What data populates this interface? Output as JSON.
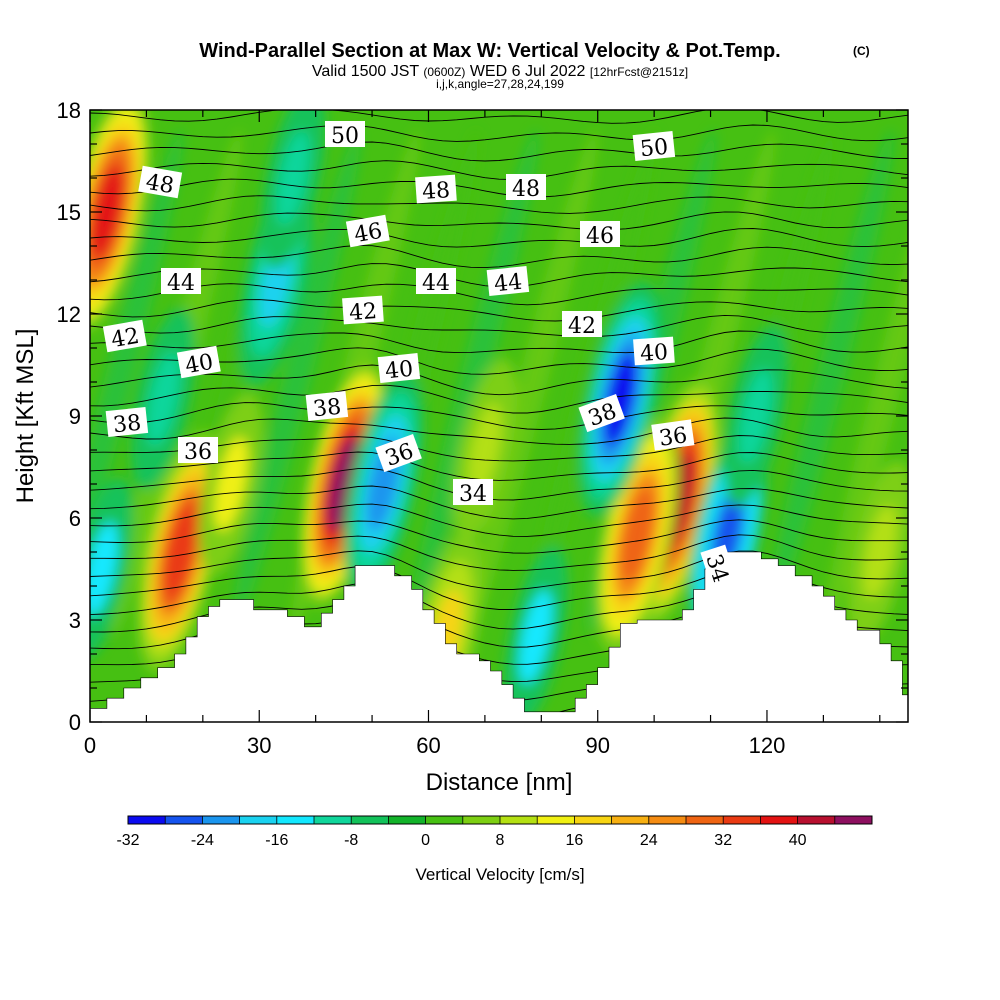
{
  "chart_data": {
    "type": "heatmap",
    "title": "Wind-Parallel Section at Max W: Vertical Velocity & Pot.Temp.",
    "title_mark": "(C)",
    "subtitle_parts": [
      "Valid 1500 JST",
      "(0600Z)",
      "WED 6 Jul 2022",
      "[12hrFcst@2151z]"
    ],
    "subtitle3": "i,j,k,angle=27,28,24,199",
    "xlabel": "Distance [nm]",
    "ylabel": "Height [Kft MSL]",
    "xlim": [
      0,
      145
    ],
    "ylim": [
      0,
      18
    ],
    "xticks": [
      0,
      30,
      60,
      90,
      120
    ],
    "yticks": [
      0,
      3,
      6,
      9,
      12,
      15,
      18
    ],
    "colorbar": {
      "label": "Vertical Velocity [cm/s]",
      "ticks": [
        -32,
        -24,
        -16,
        -8,
        0,
        8,
        16,
        24,
        32,
        40
      ],
      "min": -32,
      "max": 48,
      "step": 4,
      "colors": [
        "#0b0bf0",
        "#1553ee",
        "#1a95ee",
        "#1ad2f0",
        "#12e8ff",
        "#10d69b",
        "#12c25a",
        "#12b32a",
        "#46c012",
        "#7dcf12",
        "#b4e012",
        "#f0f012",
        "#f7d412",
        "#f7b012",
        "#f58c12",
        "#ef6412",
        "#ea3a12",
        "#e31212",
        "#b8102f",
        "#8e1060",
        "#5a1082"
      ]
    },
    "isentrope_labels": [
      "50",
      "50",
      "48",
      "48",
      "48",
      "46",
      "46",
      "44",
      "44",
      "44",
      "42",
      "42",
      "42",
      "40",
      "40",
      "40",
      "38",
      "38",
      "38",
      "36",
      "36",
      "36",
      "34",
      "34"
    ],
    "highlights": [
      {
        "x": 3,
        "y": 15,
        "w": 36
      },
      {
        "x": 16,
        "y": 5,
        "w": 34
      },
      {
        "x": 45,
        "y": 7,
        "w": 44
      },
      {
        "x": 104,
        "y": 6.5,
        "w": 40
      },
      {
        "x": 97,
        "y": 5.5,
        "w": 30
      },
      {
        "x": 33,
        "y": 13,
        "w": -18
      },
      {
        "x": 94,
        "y": 9.5,
        "w": -30
      },
      {
        "x": 52,
        "y": 7,
        "w": -24
      },
      {
        "x": 113,
        "y": 5.5,
        "w": -26
      },
      {
        "x": 79,
        "y": 2.5,
        "w": -14
      },
      {
        "x": 2,
        "y": 4.5,
        "w": -14
      },
      {
        "x": 13,
        "y": 9.5,
        "w": -12
      },
      {
        "x": 36,
        "y": 16,
        "w": -10
      },
      {
        "x": 118,
        "y": 9,
        "w": -10
      },
      {
        "x": 63,
        "y": 2.5,
        "w": 16
      },
      {
        "x": 70,
        "y": 8,
        "w": 10
      },
      {
        "x": 140,
        "y": 5,
        "w": 10
      },
      {
        "x": 25,
        "y": 7,
        "w": 12
      }
    ],
    "terrain": [
      [
        0,
        0.4
      ],
      [
        3,
        0.4
      ],
      [
        3,
        0.7
      ],
      [
        6,
        0.7
      ],
      [
        6,
        1
      ],
      [
        9,
        1
      ],
      [
        9,
        1.3
      ],
      [
        12,
        1.3
      ],
      [
        12,
        1.6
      ],
      [
        15,
        1.6
      ],
      [
        15,
        2
      ],
      [
        17,
        2
      ],
      [
        17,
        2.5
      ],
      [
        19,
        2.5
      ],
      [
        19,
        3.1
      ],
      [
        21,
        3.1
      ],
      [
        21,
        3.4
      ],
      [
        23,
        3.4
      ],
      [
        23,
        3.6
      ],
      [
        29,
        3.6
      ],
      [
        29,
        3.3
      ],
      [
        35,
        3.3
      ],
      [
        35,
        3.1
      ],
      [
        38,
        3.1
      ],
      [
        38,
        2.8
      ],
      [
        41,
        2.8
      ],
      [
        41,
        3.2
      ],
      [
        43,
        3.2
      ],
      [
        43,
        3.6
      ],
      [
        45,
        3.6
      ],
      [
        45,
        4
      ],
      [
        47,
        4
      ],
      [
        47,
        4.6
      ],
      [
        54,
        4.6
      ],
      [
        54,
        4.3
      ],
      [
        57,
        4.3
      ],
      [
        57,
        3.9
      ],
      [
        59,
        3.9
      ],
      [
        59,
        3.3
      ],
      [
        61,
        3.3
      ],
      [
        61,
        2.9
      ],
      [
        63,
        2.9
      ],
      [
        63,
        2.3
      ],
      [
        65,
        2.3
      ],
      [
        65,
        2
      ],
      [
        69,
        2
      ],
      [
        69,
        1.8
      ],
      [
        71,
        1.8
      ],
      [
        71,
        1.5
      ],
      [
        73,
        1.5
      ],
      [
        73,
        1.1
      ],
      [
        75,
        1.1
      ],
      [
        75,
        0.7
      ],
      [
        77,
        0.7
      ],
      [
        77,
        0.3
      ],
      [
        86,
        0.3
      ],
      [
        86,
        0.7
      ],
      [
        88,
        0.7
      ],
      [
        88,
        1.1
      ],
      [
        90,
        1.1
      ],
      [
        90,
        1.6
      ],
      [
        92,
        1.6
      ],
      [
        92,
        2.2
      ],
      [
        94,
        2.2
      ],
      [
        94,
        2.9
      ],
      [
        97,
        2.9
      ],
      [
        97,
        3
      ],
      [
        105,
        3
      ],
      [
        105,
        3.3
      ],
      [
        107,
        3.3
      ],
      [
        107,
        3.9
      ],
      [
        109,
        3.9
      ],
      [
        109,
        4.5
      ],
      [
        111,
        4.5
      ],
      [
        111,
        5
      ],
      [
        119,
        5
      ],
      [
        119,
        4.8
      ],
      [
        122,
        4.8
      ],
      [
        122,
        4.6
      ],
      [
        125,
        4.6
      ],
      [
        125,
        4.3
      ],
      [
        128,
        4.3
      ],
      [
        128,
        4
      ],
      [
        130,
        4
      ],
      [
        130,
        3.7
      ],
      [
        132,
        3.7
      ],
      [
        132,
        3.3
      ],
      [
        134,
        3.3
      ],
      [
        134,
        3
      ],
      [
        136,
        3
      ],
      [
        136,
        2.7
      ],
      [
        140,
        2.7
      ],
      [
        140,
        2.3
      ],
      [
        142,
        2.3
      ],
      [
        142,
        1.8
      ],
      [
        144,
        1.8
      ],
      [
        144,
        0.8
      ],
      [
        145,
        0.8
      ],
      [
        145,
        0
      ]
    ]
  }
}
